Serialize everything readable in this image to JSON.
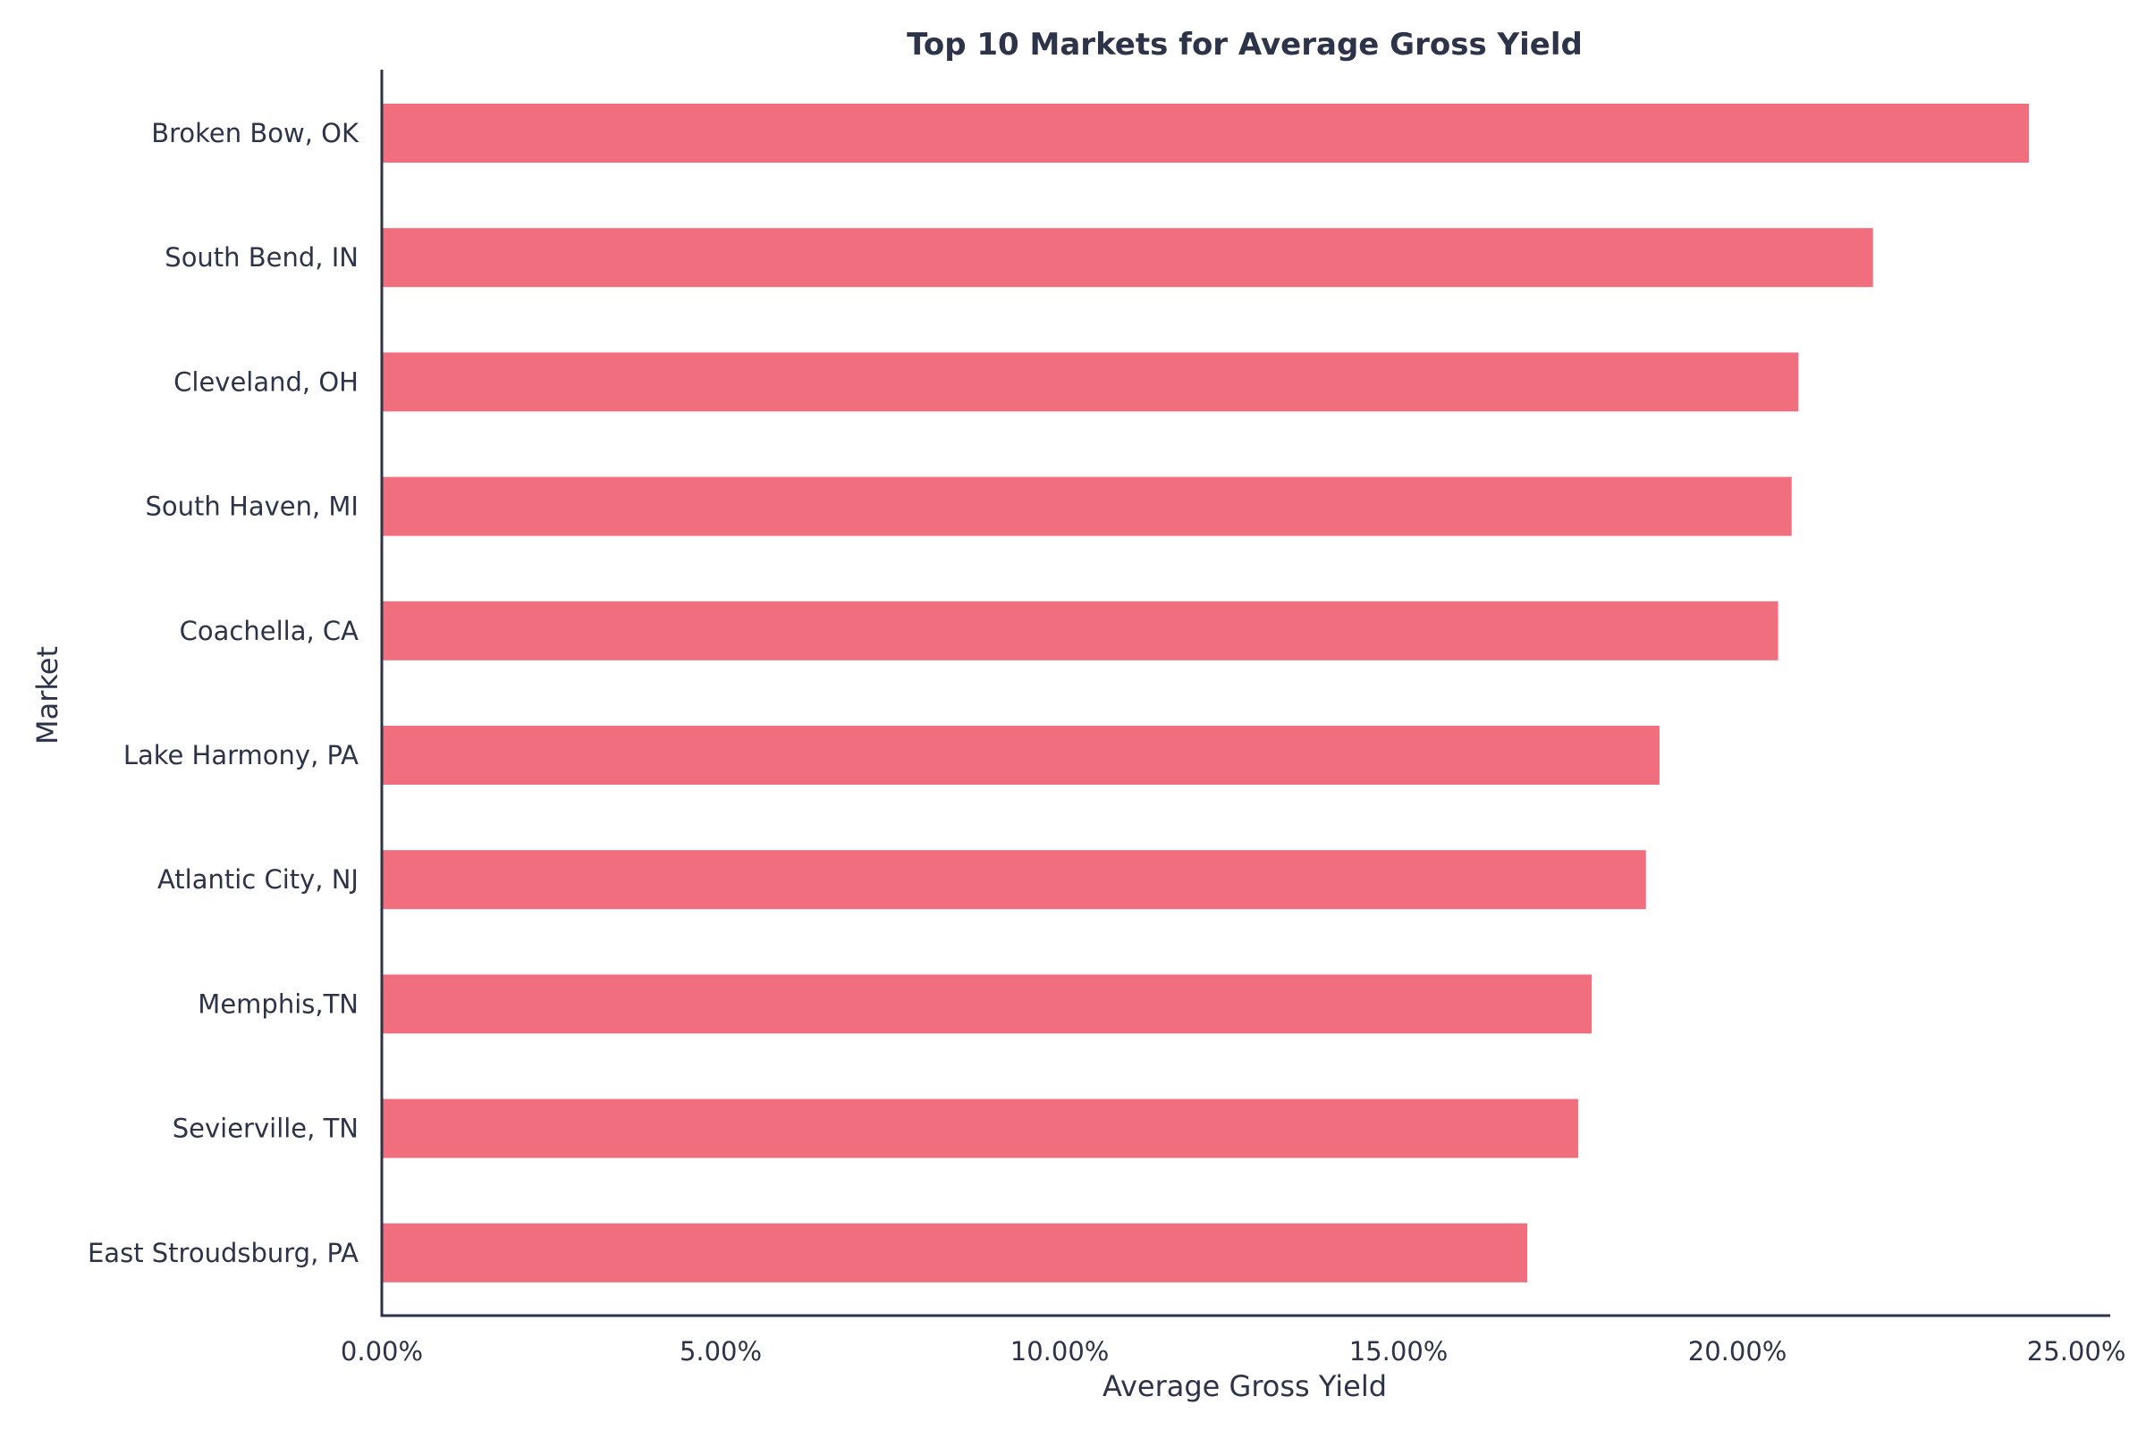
{
  "chart_data": {
    "type": "bar",
    "orientation": "horizontal",
    "title": "Top 10 Markets for Average Gross Yield",
    "xlabel": "Average Gross Yield",
    "ylabel": "Market",
    "xlim": [
      0,
      25.5
    ],
    "xticks": [
      0,
      5,
      10,
      15,
      20,
      25
    ],
    "xtick_labels": [
      "0.00%",
      "5.00%",
      "10.00%",
      "15.00%",
      "20.00%",
      "25.00%"
    ],
    "categories": [
      "Broken Bow, OK",
      "South Bend, IN",
      "Cleveland, OH",
      "South Haven, MI",
      "Coachella, CA",
      "Lake Harmony, PA",
      "Atlantic City, NJ",
      "Memphis,TN",
      "Sevierville, TN",
      "East Stroudsburg, PA"
    ],
    "values": [
      24.3,
      22.0,
      20.9,
      20.8,
      20.6,
      18.85,
      18.65,
      17.85,
      17.65,
      16.9
    ],
    "bar_color": "#f06e7e",
    "axis_color": "#2d3348",
    "grid": false
  }
}
